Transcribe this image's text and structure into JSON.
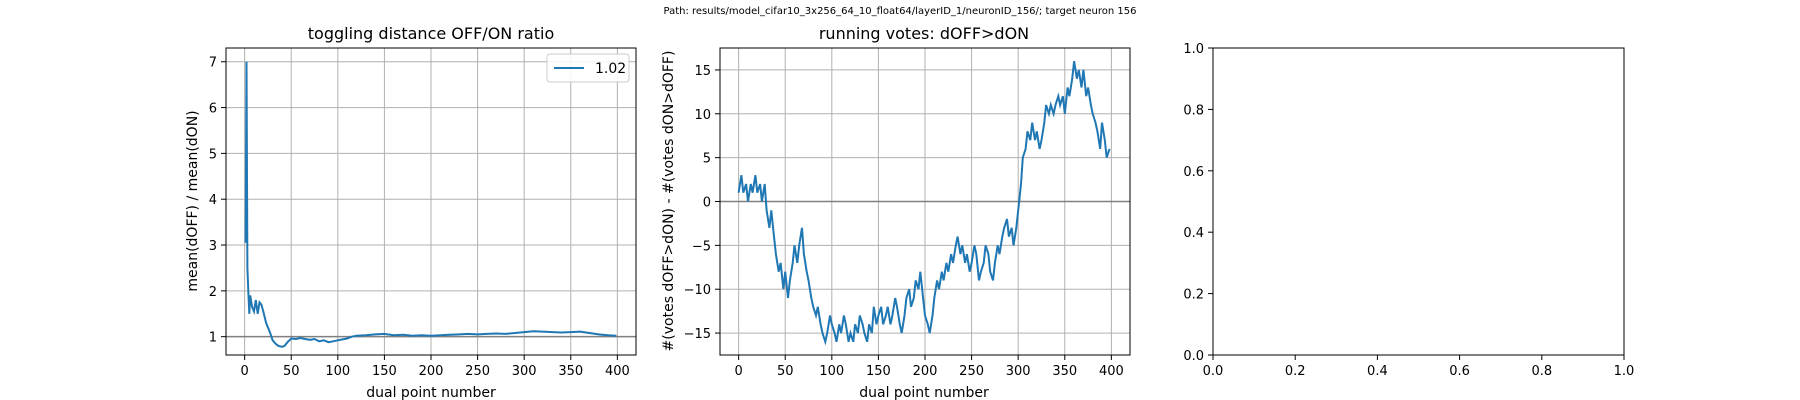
{
  "suptitle": "Path: results/model_cifar10_3x256_64_10_float64/layerID_1/neuronID_156/; target neuron 156",
  "chart_data": [
    {
      "type": "line",
      "title": "toggling distance OFF/ON ratio",
      "xlabel": "dual point number",
      "ylabel": "mean(dOFF) / mean(dON)",
      "xlim": [
        -20,
        420
      ],
      "ylim": [
        0.6,
        7.3
      ],
      "xticks": [
        0,
        50,
        100,
        150,
        200,
        250,
        300,
        350,
        400
      ],
      "yticks": [
        1,
        2,
        3,
        4,
        5,
        6,
        7
      ],
      "grid": true,
      "hline": 1,
      "legend": {
        "position": "top-right",
        "entries": [
          "1.02"
        ]
      },
      "series": [
        {
          "name": "1.02",
          "color": "#1f77b4",
          "x": [
            1,
            2,
            3,
            4,
            5,
            6,
            8,
            10,
            12,
            14,
            16,
            18,
            20,
            23,
            26,
            28,
            30,
            33,
            36,
            40,
            43,
            46,
            50,
            55,
            60,
            65,
            70,
            75,
            80,
            85,
            90,
            95,
            100,
            105,
            110,
            115,
            120,
            130,
            140,
            150,
            160,
            170,
            180,
            190,
            200,
            210,
            220,
            230,
            240,
            250,
            260,
            270,
            280,
            290,
            300,
            310,
            320,
            330,
            340,
            350,
            360,
            370,
            380,
            390,
            399
          ],
          "values": [
            3.05,
            7.0,
            2.5,
            1.95,
            1.5,
            1.9,
            1.65,
            1.55,
            1.8,
            1.5,
            1.75,
            1.7,
            1.55,
            1.3,
            1.15,
            1.05,
            0.92,
            0.85,
            0.8,
            0.78,
            0.8,
            0.88,
            0.96,
            0.95,
            0.97,
            0.95,
            0.93,
            0.95,
            0.9,
            0.92,
            0.88,
            0.9,
            0.92,
            0.94,
            0.96,
            1.0,
            1.02,
            1.03,
            1.05,
            1.06,
            1.03,
            1.04,
            1.02,
            1.03,
            1.02,
            1.03,
            1.04,
            1.05,
            1.06,
            1.05,
            1.06,
            1.07,
            1.06,
            1.08,
            1.1,
            1.12,
            1.11,
            1.1,
            1.09,
            1.1,
            1.11,
            1.08,
            1.05,
            1.03,
            1.02
          ]
        }
      ]
    },
    {
      "type": "line",
      "title": "running votes: dOFF>dON",
      "xlabel": "dual point number",
      "ylabel": "#(votes dOFF>dON) - #(votes dON>dOFF)",
      "xlim": [
        -20,
        420
      ],
      "ylim": [
        -17.5,
        17.5
      ],
      "xticks": [
        0,
        50,
        100,
        150,
        200,
        250,
        300,
        350,
        400
      ],
      "yticks": [
        -15,
        -10,
        -5,
        0,
        5,
        10,
        15
      ],
      "grid": true,
      "hline": 0,
      "series": [
        {
          "name": "",
          "color": "#1f77b4",
          "x": [
            0,
            3,
            5,
            8,
            10,
            13,
            15,
            18,
            20,
            23,
            25,
            28,
            30,
            33,
            35,
            38,
            40,
            43,
            45,
            48,
            50,
            53,
            55,
            58,
            60,
            63,
            65,
            68,
            70,
            73,
            75,
            78,
            80,
            83,
            85,
            88,
            90,
            93,
            95,
            98,
            100,
            103,
            105,
            108,
            110,
            113,
            115,
            118,
            120,
            123,
            125,
            128,
            130,
            133,
            135,
            138,
            140,
            143,
            145,
            148,
            150,
            153,
            155,
            158,
            160,
            163,
            165,
            168,
            170,
            173,
            175,
            178,
            180,
            183,
            185,
            188,
            190,
            193,
            195,
            198,
            200,
            203,
            205,
            208,
            210,
            213,
            215,
            218,
            220,
            223,
            225,
            228,
            230,
            233,
            235,
            238,
            240,
            243,
            245,
            248,
            250,
            253,
            255,
            258,
            260,
            263,
            265,
            268,
            270,
            273,
            275,
            278,
            280,
            283,
            285,
            288,
            290,
            293,
            295,
            298,
            300,
            303,
            305,
            308,
            310,
            313,
            315,
            318,
            320,
            323,
            325,
            328,
            330,
            333,
            335,
            338,
            340,
            343,
            345,
            348,
            350,
            353,
            355,
            358,
            360,
            363,
            365,
            368,
            370,
            373,
            375,
            378,
            380,
            383,
            385,
            388,
            390,
            393,
            395,
            398
          ],
          "values": [
            1,
            3,
            1,
            2,
            0,
            2,
            1,
            3,
            1,
            2,
            0,
            2,
            -1,
            -3,
            -1,
            -4,
            -6,
            -8,
            -7,
            -10,
            -8,
            -11,
            -9,
            -7,
            -5,
            -7,
            -5,
            -3,
            -6,
            -8,
            -9,
            -11,
            -12,
            -13,
            -12,
            -14,
            -15,
            -16,
            -15,
            -13,
            -14,
            -15,
            -16,
            -14,
            -15,
            -13,
            -14,
            -16,
            -15,
            -16,
            -14,
            -15,
            -13,
            -14,
            -15,
            -16,
            -14,
            -15,
            -12,
            -14,
            -13,
            -12,
            -14,
            -13,
            -12,
            -14,
            -13,
            -11,
            -12,
            -14,
            -15,
            -13,
            -11,
            -10,
            -12,
            -11,
            -9,
            -10,
            -8,
            -11,
            -13,
            -14,
            -15,
            -13,
            -11,
            -9,
            -10,
            -8,
            -9,
            -7,
            -8,
            -6,
            -7,
            -5,
            -4,
            -6,
            -5,
            -7,
            -6,
            -8,
            -7,
            -5,
            -6,
            -9,
            -8,
            -7,
            -5,
            -6,
            -8,
            -9,
            -7,
            -5,
            -6,
            -4,
            -3,
            -2,
            -4,
            -3,
            -5,
            -3,
            -1,
            2,
            5,
            6,
            8,
            7,
            9,
            7,
            8,
            6,
            7,
            9,
            11,
            10,
            11,
            10,
            11,
            12,
            11,
            12,
            10,
            13,
            12,
            14,
            16,
            14,
            15,
            13,
            15,
            12,
            13,
            11,
            10,
            9,
            8,
            6,
            9,
            7,
            5,
            6
          ]
        }
      ]
    },
    {
      "type": "line",
      "title": "",
      "xlim": [
        0,
        1
      ],
      "ylim": [
        0,
        1
      ],
      "xticks": [
        "0.0",
        "0.2",
        "0.4",
        "0.6",
        "0.8",
        "1.0"
      ],
      "yticks": [
        "0.0",
        "0.2",
        "0.4",
        "0.6",
        "0.8",
        "1.0"
      ],
      "grid": false,
      "series": []
    }
  ]
}
